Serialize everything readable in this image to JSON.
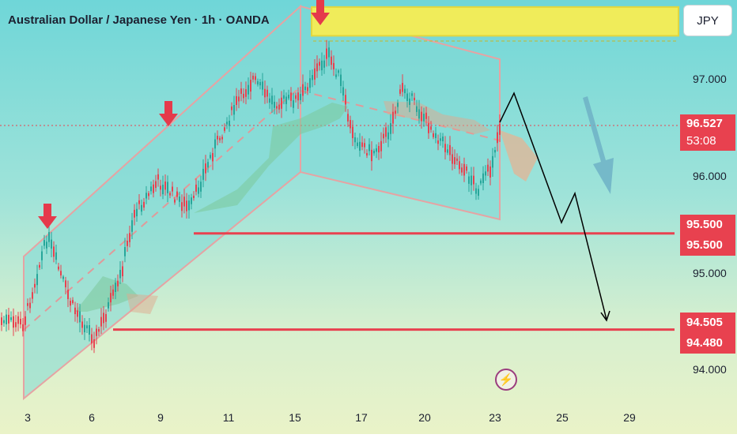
{
  "window": {
    "title": "Australian Dollar / Japanese Yen · 1h · OANDA",
    "currency": "JPY"
  },
  "chart_data": {
    "type": "candlestick",
    "title": "Australian Dollar / Japanese Yen · 1h · OANDA",
    "symbol": "AUDJPY",
    "timeframe": "1h",
    "source": "OANDA",
    "y_axis": {
      "ticks": [
        97.0,
        96.0,
        95.0,
        94.0
      ],
      "tick_labels": [
        "97.000",
        "96.000",
        "95.000",
        "94.000"
      ],
      "range": [
        93.6,
        98.1
      ]
    },
    "x_axis": {
      "tick_labels": [
        "3",
        "6",
        "9",
        "11",
        "15",
        "17",
        "20",
        "23",
        "25",
        "29"
      ]
    },
    "current_price": {
      "value": "96.527",
      "countdown": "53:08"
    },
    "support_levels": [
      {
        "label_top": "95.500",
        "label_bottom": "95.500",
        "value": 95.5
      },
      {
        "label_top": "94.505",
        "label_bottom": "94.480",
        "value": 94.505
      }
    ],
    "resistance_zone": [
      97.65,
      97.85
    ],
    "colors": {
      "bull": "#26a69a",
      "bear": "#e8414f",
      "level": "#e8414f",
      "zone": "#f0ec5a",
      "projection": "#000000"
    }
  },
  "icons": {
    "lightning": "lightning-icon"
  }
}
